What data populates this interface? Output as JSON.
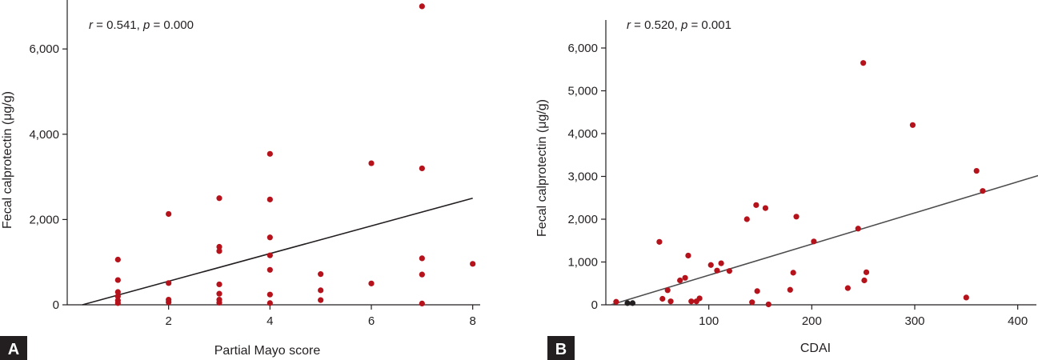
{
  "chart_data": [
    {
      "type": "scatter",
      "panel_label": "A",
      "xlabel": "Partial Mayo score",
      "ylabel": "Fecal calprotectin (μg/g)",
      "stat": {
        "r_symbol": "r",
        "r_text": " = 0.541, ",
        "p_symbol": "p",
        "p_text": " = 0.000"
      },
      "xlim": [
        0,
        8.2
      ],
      "ylim": [
        0,
        7000
      ],
      "xticks": [
        2,
        4,
        6,
        8
      ],
      "xtick_labels": [
        "2",
        "4",
        "6",
        "8"
      ],
      "yticks": [
        0,
        2000,
        4000,
        6000
      ],
      "ytick_labels": [
        "0",
        "2,000",
        "4,000",
        "6,000"
      ],
      "point_color": "#b5121b",
      "line_color": "#231f20",
      "trendline": {
        "x": [
          0.3,
          8
        ],
        "y": [
          0,
          2500
        ]
      },
      "points": [
        {
          "x": 1,
          "y": 1060
        },
        {
          "x": 1,
          "y": 580
        },
        {
          "x": 1,
          "y": 300
        },
        {
          "x": 1,
          "y": 200
        },
        {
          "x": 1,
          "y": 100
        },
        {
          "x": 1,
          "y": 40
        },
        {
          "x": 2,
          "y": 2130
        },
        {
          "x": 2,
          "y": 510
        },
        {
          "x": 2,
          "y": 120
        },
        {
          "x": 2,
          "y": 60
        },
        {
          "x": 3,
          "y": 2500
        },
        {
          "x": 3,
          "y": 1360
        },
        {
          "x": 3,
          "y": 1260
        },
        {
          "x": 3,
          "y": 480
        },
        {
          "x": 3,
          "y": 260
        },
        {
          "x": 3,
          "y": 120
        },
        {
          "x": 3,
          "y": 50
        },
        {
          "x": 4,
          "y": 3540
        },
        {
          "x": 4,
          "y": 2470
        },
        {
          "x": 4,
          "y": 1580
        },
        {
          "x": 4,
          "y": 1160
        },
        {
          "x": 4,
          "y": 820
        },
        {
          "x": 4,
          "y": 240
        },
        {
          "x": 4,
          "y": 40
        },
        {
          "x": 5,
          "y": 720
        },
        {
          "x": 5,
          "y": 340
        },
        {
          "x": 5,
          "y": 110
        },
        {
          "x": 6,
          "y": 3320
        },
        {
          "x": 6,
          "y": 500
        },
        {
          "x": 7,
          "y": 7000
        },
        {
          "x": 7,
          "y": 3200
        },
        {
          "x": 7,
          "y": 1090
        },
        {
          "x": 7,
          "y": 710
        },
        {
          "x": 7,
          "y": 30
        },
        {
          "x": 8,
          "y": 960
        }
      ]
    },
    {
      "type": "scatter",
      "panel_label": "B",
      "xlabel": "CDAI",
      "ylabel": "Fecal calprotectin (μg/g)",
      "stat": {
        "r_symbol": "r",
        "r_text": " = 0.520, ",
        "p_symbol": "p",
        "p_text": " = 0.001"
      },
      "xlim": [
        0,
        420
      ],
      "ylim": [
        0,
        6500
      ],
      "xticks": [
        100,
        200,
        300,
        400
      ],
      "xtick_labels": [
        "100",
        "200",
        "300",
        "400"
      ],
      "yticks": [
        0,
        1000,
        2000,
        3000,
        4000,
        5000,
        6000
      ],
      "ytick_labels": [
        "0",
        "1,000",
        "2,000",
        "3,000",
        "4,000",
        "5,000",
        "6,000"
      ],
      "point_color": "#b5121b",
      "secondary_point_color": "#231f20",
      "line_color": "#4d4d4f",
      "trendline": {
        "x": [
          5,
          420
        ],
        "y": [
          0,
          3020
        ]
      },
      "points": [
        {
          "x": 10,
          "y": 70
        },
        {
          "x": 21,
          "y": 40,
          "c": "dark"
        },
        {
          "x": 26,
          "y": 40,
          "c": "dark"
        },
        {
          "x": 52,
          "y": 1470
        },
        {
          "x": 55,
          "y": 140
        },
        {
          "x": 60,
          "y": 340
        },
        {
          "x": 63,
          "y": 80
        },
        {
          "x": 72,
          "y": 570
        },
        {
          "x": 77,
          "y": 630
        },
        {
          "x": 80,
          "y": 1150
        },
        {
          "x": 83,
          "y": 80
        },
        {
          "x": 88,
          "y": 80
        },
        {
          "x": 91,
          "y": 150
        },
        {
          "x": 102,
          "y": 930
        },
        {
          "x": 108,
          "y": 800
        },
        {
          "x": 112,
          "y": 970
        },
        {
          "x": 120,
          "y": 790
        },
        {
          "x": 137,
          "y": 2000
        },
        {
          "x": 142,
          "y": 60
        },
        {
          "x": 146,
          "y": 2330
        },
        {
          "x": 147,
          "y": 320
        },
        {
          "x": 155,
          "y": 2260
        },
        {
          "x": 158,
          "y": 10
        },
        {
          "x": 179,
          "y": 350
        },
        {
          "x": 182,
          "y": 750
        },
        {
          "x": 185,
          "y": 2060
        },
        {
          "x": 202,
          "y": 1480
        },
        {
          "x": 235,
          "y": 390
        },
        {
          "x": 245,
          "y": 1780
        },
        {
          "x": 250,
          "y": 5650
        },
        {
          "x": 251,
          "y": 570
        },
        {
          "x": 253,
          "y": 760
        },
        {
          "x": 298,
          "y": 4200
        },
        {
          "x": 350,
          "y": 170
        },
        {
          "x": 360,
          "y": 3130
        },
        {
          "x": 366,
          "y": 2660
        }
      ]
    }
  ]
}
